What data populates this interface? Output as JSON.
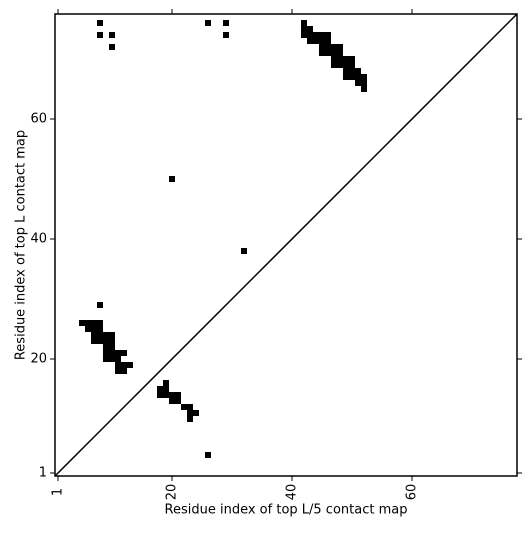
{
  "chart_data": {
    "type": "scatter",
    "xlabel": "Residue index of top L/5 contact map",
    "ylabel": "Residue index of top L contact map",
    "xlim": [
      0.5,
      77.5
    ],
    "ylim": [
      0.5,
      77.5
    ],
    "xticks": [
      1,
      20,
      40,
      60
    ],
    "yticks": [
      1,
      20,
      40,
      60
    ],
    "color": "#000000",
    "x": [
      8,
      8,
      10,
      10,
      26,
      29,
      29,
      20,
      32,
      8,
      42,
      42,
      43,
      42,
      43,
      44,
      45,
      46,
      43,
      44,
      45,
      46,
      45,
      46,
      47,
      48,
      45,
      46,
      47,
      48,
      47,
      48,
      49,
      50,
      47,
      48,
      49,
      50,
      49,
      50,
      51,
      49,
      50,
      51,
      52,
      51,
      52,
      52,
      5,
      6,
      7,
      8,
      6,
      7,
      8,
      7,
      8,
      9,
      10,
      7,
      8,
      9,
      10,
      9,
      10,
      9,
      10,
      11,
      12,
      9,
      10,
      11,
      11,
      12,
      13,
      11,
      12,
      19,
      18,
      19,
      18,
      19,
      20,
      21,
      20,
      21,
      22,
      23,
      23,
      24,
      23,
      26
    ],
    "y": [
      76,
      74,
      74,
      72,
      76,
      76,
      74,
      50,
      38,
      29,
      76,
      75,
      75,
      74,
      74,
      74,
      74,
      74,
      73,
      73,
      73,
      73,
      72,
      72,
      72,
      72,
      71,
      71,
      71,
      71,
      70,
      70,
      70,
      70,
      69,
      69,
      69,
      69,
      68,
      68,
      68,
      67,
      67,
      67,
      67,
      66,
      66,
      65,
      26,
      26,
      26,
      26,
      25,
      25,
      25,
      24,
      24,
      24,
      24,
      23,
      23,
      23,
      23,
      22,
      22,
      21,
      21,
      21,
      21,
      20,
      20,
      20,
      19,
      19,
      19,
      18,
      18,
      16,
      15,
      15,
      14,
      14,
      14,
      14,
      13,
      13,
      12,
      12,
      11,
      11,
      10,
      4
    ]
  }
}
